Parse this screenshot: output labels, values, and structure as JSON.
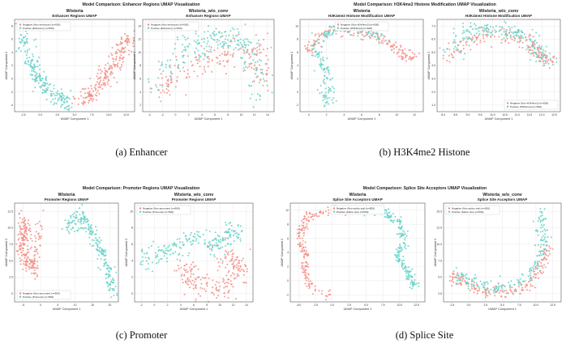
{
  "colors": {
    "negative": "#f28b82",
    "positive": "#62cfc4",
    "axis": "#555555",
    "grid": "#e8e8e8"
  },
  "figures": [
    {
      "caption": "(a) Enhancer",
      "suptitle": "Model Comparison: Enhancer Regions UMAP Visualization",
      "panels": [
        {
          "model": "Wisteria",
          "title": "Enhancer Regions UMAP",
          "xlabel": "UMAP Component 1",
          "ylabel": "UMAP Component 2",
          "xticks": [
            "-2.5",
            "0.0",
            "2.5",
            "5.0",
            "7.5",
            "10.0",
            "12.5"
          ],
          "yticks": [
            "-4",
            "-2",
            "0",
            "2",
            "4",
            "6",
            "8"
          ],
          "legend": [
            "Negative (Non-enhancer) (n=500)",
            "Positive (Enhancer) (n=500)"
          ],
          "legend_pos": "top-left"
        },
        {
          "model": "Wisteria_w/o_conv",
          "title": "Enhancer Regions UMAP",
          "xlabel": "UMAP Component 1",
          "ylabel": "UMAP Component 2",
          "xticks": [
            "-4",
            "-2",
            "0",
            "2",
            "4",
            "6",
            "8",
            "10",
            "12",
            "14"
          ],
          "yticks": [
            "2",
            "4",
            "6",
            "8",
            "10",
            "12",
            "14"
          ],
          "legend": [
            "Negative (Non-enhancer) (n=500)",
            "Positive (Enhancer) (n=500)"
          ],
          "legend_pos": "top-left"
        }
      ]
    },
    {
      "caption": "(b) H3K4me2 Histone",
      "suptitle": "Model Comparison: H3K4me2 Histone Modification UMAP Visualization",
      "panels": [
        {
          "model": "Wisteria",
          "title": "H3K4me2 Histone Modification UMAP",
          "xlabel": "UMAP Component 1",
          "ylabel": "UMAP Component 2",
          "xticks": [
            "0",
            "2",
            "4",
            "6",
            "8",
            "10",
            "12"
          ],
          "yticks": [
            "-2",
            "0",
            "2",
            "4",
            "6",
            "8",
            "10"
          ],
          "legend": [
            "Negative (Non-H3K4me2) (n=500)",
            "Positive (H3K4me2) (n=500)"
          ],
          "legend_pos": "top-center"
        },
        {
          "model": "Wisteria_w/o_conv",
          "title": "H3K4me2 Histone Modification UMAP",
          "xlabel": "UMAP Component 1",
          "ylabel": "UMAP Component 2",
          "xticks": [
            "8.0",
            "8.5",
            "9.0",
            "9.5",
            "10.0",
            "10.5",
            "11.0",
            "11.5",
            "12.0",
            "12.5"
          ],
          "yticks": [
            "1.0",
            "2.0",
            "3.0",
            "4.0",
            "5.0",
            "6.0",
            "7.0"
          ],
          "legend": [
            "Negative (Non-H3K4me2) (n=500)",
            "Positive (H3K4me2) (n=500)"
          ],
          "legend_pos": "bottom-right"
        }
      ]
    },
    {
      "caption": "(c) Promoter",
      "suptitle": "Model Comparison: Promoter Regions UMAP Visualization",
      "panels": [
        {
          "model": "Wisteria",
          "title": "Promoter Regions UMAP",
          "xlabel": "UMAP Component 1",
          "ylabel": "UMAP Component 2",
          "xticks": [
            "-5",
            "0",
            "5",
            "10",
            "15",
            "20"
          ],
          "yticks": [
            "0",
            "2.5",
            "5.0",
            "7.5",
            "10.0",
            "12.5"
          ],
          "legend": [
            "Negative (Non-promoter) (n=500)",
            "Positive (Promoter) (n=500)"
          ],
          "legend_pos": "bottom-left"
        },
        {
          "model": "Wisteria_w/o_conv",
          "title": "Promoter Regions UMAP",
          "xlabel": "UMAP Component 1",
          "ylabel": "UMAP Component 2",
          "xticks": [
            "-2",
            "0",
            "2",
            "4",
            "6",
            "8",
            "10",
            "12",
            "14"
          ],
          "yticks": [
            "0",
            "2",
            "4",
            "6",
            "8",
            "10"
          ],
          "legend": [
            "Negative (Non-promoter) (n=500)",
            "Positive (Promoter) (n=500)"
          ],
          "legend_pos": "top-left"
        }
      ]
    },
    {
      "caption": "(d) Splice Site",
      "suptitle": "Model Comparison: Splice Site Acceptors UMAP Visualization",
      "panels": [
        {
          "model": "Wisteria",
          "title": "Splice Site Acceptors UMAP",
          "xlabel": "UMAP Component 1",
          "ylabel": "UMAP Component 2",
          "xticks": [
            "-5.0",
            "-2.5",
            "0.0",
            "2.5",
            "5.0",
            "7.5",
            "10.0",
            "12.5"
          ],
          "yticks": [
            "-2",
            "0",
            "2",
            "4",
            "6",
            "8",
            "10"
          ],
          "legend": [
            "Negative (Non-splice site) (n=500)",
            "Positive (Splice site) (n=500)"
          ],
          "legend_pos": "top-center"
        },
        {
          "model": "Wisteria_w/o_conv",
          "title": "Splice Site Acceptors UMAP",
          "xlabel": "UMAP Component 1",
          "ylabel": "UMAP Component 2",
          "xticks": [
            "-2.5",
            "0.0",
            "2.5",
            "5.0",
            "7.5",
            "10.0",
            "12.5"
          ],
          "yticks": [
            "2.5",
            "5.0",
            "7.5",
            "10.0",
            "12.5",
            "15.0"
          ],
          "legend": [
            "Negative (Non-splice site) (n=500)",
            "Positive (Splice site) (n=500)"
          ],
          "legend_pos": "top-left"
        }
      ]
    }
  ],
  "chart_data": [
    {
      "type": "scatter",
      "title": "Enhancer Regions UMAP",
      "xlabel": "UMAP Component 1",
      "ylabel": "UMAP Component 2",
      "xlim": [
        -3.5,
        13.5
      ],
      "ylim": [
        -4.5,
        8.5
      ],
      "grid": true,
      "legend": "top-left",
      "series": [
        {
          "name": "Negative (Non-enhancer) (n=500)",
          "color": "#f28b82",
          "cloud": {
            "path": [
              [
                6,
                -3
              ],
              [
                7.5,
                -2
              ],
              [
                9,
                0
              ],
              [
                10.5,
                2
              ],
              [
                11.5,
                4
              ],
              [
                12.5,
                6
              ]
            ],
            "spread": 1.1,
            "n": 220
          }
        },
        {
          "name": "Positive (Enhancer) (n=500)",
          "color": "#62cfc4",
          "cloud": {
            "path": [
              [
                -2.5,
                6.5
              ],
              [
                -1.5,
                3
              ],
              [
                0,
                0
              ],
              [
                2,
                -2
              ],
              [
                4,
                -3.5
              ]
            ],
            "spread": 1.0,
            "n": 220
          }
        }
      ]
    },
    {
      "type": "scatter",
      "title": "Enhancer Regions UMAP",
      "xlabel": "UMAP Component 1",
      "ylabel": "UMAP Component 2",
      "xlim": [
        -5,
        15
      ],
      "ylim": [
        1,
        15
      ],
      "grid": true,
      "legend": "top-left",
      "series": [
        {
          "name": "Negative (Non-enhancer) (n=500)",
          "color": "#f28b82",
          "cloud": {
            "path": [
              [
                -3,
                4
              ],
              [
                1,
                7
              ],
              [
                5,
                9
              ],
              [
                9,
                10
              ],
              [
                12,
                11
              ],
              [
                13,
                5
              ]
            ],
            "spread": 2.0,
            "n": 180
          }
        },
        {
          "name": "Positive (Enhancer) (n=500)",
          "color": "#62cfc4",
          "cloud": {
            "path": [
              [
                -3,
                5
              ],
              [
                1,
                10
              ],
              [
                5,
                12
              ],
              [
                9,
                12
              ],
              [
                12,
                10
              ],
              [
                13,
                3
              ]
            ],
            "spread": 2.0,
            "n": 220
          }
        }
      ]
    },
    {
      "type": "scatter",
      "title": "H3K4me2 Histone Modification UMAP",
      "xlabel": "UMAP Component 1",
      "ylabel": "UMAP Component 2",
      "xlim": [
        -0.5,
        13.5
      ],
      "ylim": [
        -3,
        11
      ],
      "grid": true,
      "legend": "top-center",
      "series": [
        {
          "name": "Negative (Non-H3K4me2) (n=500)",
          "color": "#f28b82",
          "cloud": {
            "path": [
              [
                0.5,
                6
              ],
              [
                2,
                9
              ],
              [
                5,
                9.5
              ],
              [
                8,
                8.5
              ],
              [
                10,
                7
              ],
              [
                11.5,
                5.5
              ],
              [
                13,
                5.5
              ]
            ],
            "spread": 0.7,
            "n": 170
          }
        },
        {
          "name": "Positive (H3K4me2) (n=500)",
          "color": "#62cfc4",
          "cloud": {
            "path": [
              [
                2.5,
                -2
              ],
              [
                2.8,
                1
              ],
              [
                2.2,
                4
              ],
              [
                1,
                7
              ],
              [
                3,
                9.5
              ],
              [
                6,
                9.5
              ],
              [
                9,
                8
              ]
            ],
            "spread": 0.75,
            "n": 190
          }
        }
      ]
    },
    {
      "type": "scatter",
      "title": "H3K4me2 Histone Modification UMAP",
      "xlabel": "UMAP Component 1",
      "ylabel": "UMAP Component 2",
      "xlim": [
        7.8,
        12.8
      ],
      "ylim": [
        0.8,
        7.5
      ],
      "grid": true,
      "legend": "bottom-right",
      "series": [
        {
          "name": "Negative (Non-H3K4me2) (n=500)",
          "color": "#f28b82",
          "cloud": {
            "path": [
              [
                8.2,
                4.5
              ],
              [
                9,
                6
              ],
              [
                10.2,
                6.5
              ],
              [
                11.4,
                6
              ],
              [
                12,
                5
              ],
              [
                12.6,
                4.4
              ]
            ],
            "spread": 0.45,
            "n": 170
          }
        },
        {
          "name": "Positive (H3K4me2) (n=500)",
          "color": "#62cfc4",
          "cloud": {
            "path": [
              [
                8.3,
                5
              ],
              [
                9,
                6.6
              ],
              [
                10,
                6.9
              ],
              [
                11,
                6.6
              ],
              [
                11.8,
                5.5
              ],
              [
                12.2,
                4.5
              ]
            ],
            "spread": 0.45,
            "n": 190
          }
        }
      ]
    },
    {
      "type": "scatter",
      "title": "Promoter Regions UMAP",
      "xlabel": "UMAP Component 1",
      "ylabel": "UMAP Component 2",
      "xlim": [
        -6.5,
        22.5
      ],
      "ylim": [
        -1,
        13.5
      ],
      "grid": true,
      "legend": "bottom-left",
      "series": [
        {
          "name": "Negative (Non-promoter) (n=500)",
          "color": "#f28b82",
          "cloud": {
            "path": [
              [
                -5,
                11
              ],
              [
                -3,
                9
              ],
              [
                -5,
                7
              ],
              [
                -3,
                5
              ],
              [
                -1,
                4
              ],
              [
                1,
                11
              ]
            ],
            "spread": 1.4,
            "n": 220
          }
        },
        {
          "name": "Positive (Promoter) (n=500)",
          "color": "#62cfc4",
          "cloud": {
            "path": [
              [
                8,
                10
              ],
              [
                12,
                11.5
              ],
              [
                15,
                9
              ],
              [
                18,
                6
              ],
              [
                20,
                3
              ],
              [
                21,
                0.5
              ]
            ],
            "spread": 1.3,
            "n": 220
          }
        }
      ]
    },
    {
      "type": "scatter",
      "title": "Promoter Regions UMAP",
      "xlabel": "UMAP Component 1",
      "ylabel": "UMAP Component 2",
      "xlim": [
        -3,
        15
      ],
      "ylim": [
        -0.5,
        11
      ],
      "grid": true,
      "legend": "top-left",
      "series": [
        {
          "name": "Negative (Non-promoter) (n=500)",
          "color": "#f28b82",
          "cloud": {
            "path": [
              [
                4,
                3
              ],
              [
                6,
                2
              ],
              [
                9,
                1
              ],
              [
                12,
                1.5
              ],
              [
                13,
                4
              ],
              [
                10,
                5
              ]
            ],
            "spread": 1.5,
            "n": 200
          }
        },
        {
          "name": "Positive (Promoter) (n=500)",
          "color": "#62cfc4",
          "cloud": {
            "path": [
              [
                -2,
                4
              ],
              [
                1,
                5
              ],
              [
                3,
                6
              ],
              [
                6,
                7
              ],
              [
                9,
                6
              ],
              [
                11,
                7
              ],
              [
                13,
                8
              ]
            ],
            "spread": 1.3,
            "n": 210
          }
        }
      ]
    },
    {
      "type": "scatter",
      "title": "Splice Site Acceptors UMAP",
      "xlabel": "UMAP Component 1",
      "ylabel": "UMAP Component 2",
      "xlim": [
        -6,
        13.5
      ],
      "ylim": [
        -3.5,
        11.5
      ],
      "grid": true,
      "legend": "top-center",
      "series": [
        {
          "name": "Negative (Non-splice site) (n=500)",
          "color": "#f28b82",
          "cloud": {
            "path": [
              [
                0,
                -2.5
              ],
              [
                -3,
                -1.5
              ],
              [
                -4,
                1
              ],
              [
                -3.8,
                4
              ],
              [
                -4.8,
                6.5
              ],
              [
                -3.5,
                9.5
              ],
              [
                0,
                10.5
              ],
              [
                4,
                10.5
              ]
            ],
            "spread": 0.55,
            "n": 200
          }
        },
        {
          "name": "Positive (Splice site) (n=500)",
          "color": "#62cfc4",
          "cloud": {
            "path": [
              [
                4,
                10.5
              ],
              [
                8,
                10
              ],
              [
                10,
                8
              ],
              [
                10.5,
                6
              ],
              [
                9.5,
                3.5
              ],
              [
                11,
                1
              ],
              [
                12,
                -1
              ]
            ],
            "spread": 0.6,
            "n": 200
          }
        }
      ]
    },
    {
      "type": "scatter",
      "title": "Splice Site Acceptors UMAP",
      "xlabel": "UMAP Component 1",
      "ylabel": "UMAP Component 2",
      "xlim": [
        -3.5,
        13.5
      ],
      "ylim": [
        1.5,
        16
      ],
      "grid": true,
      "legend": "top-left",
      "series": [
        {
          "name": "Negative (Non-splice site) (n=500)",
          "color": "#f28b82",
          "cloud": {
            "path": [
              [
                -2.5,
                5
              ],
              [
                0,
                4
              ],
              [
                3,
                3
              ],
              [
                6,
                3
              ],
              [
                9,
                4
              ],
              [
                11,
                7
              ],
              [
                11.5,
                10
              ]
            ],
            "spread": 0.9,
            "n": 180
          }
        },
        {
          "name": "Positive (Splice site) (n=500)",
          "color": "#62cfc4",
          "cloud": {
            "path": [
              [
                -2,
                5.5
              ],
              [
                1,
                4.5
              ],
              [
                4,
                3.5
              ],
              [
                8,
                4.5
              ],
              [
                10,
                7
              ],
              [
                11,
                10
              ],
              [
                10.5,
                13
              ],
              [
                11,
                15
              ]
            ],
            "spread": 0.9,
            "n": 200
          }
        }
      ]
    }
  ]
}
